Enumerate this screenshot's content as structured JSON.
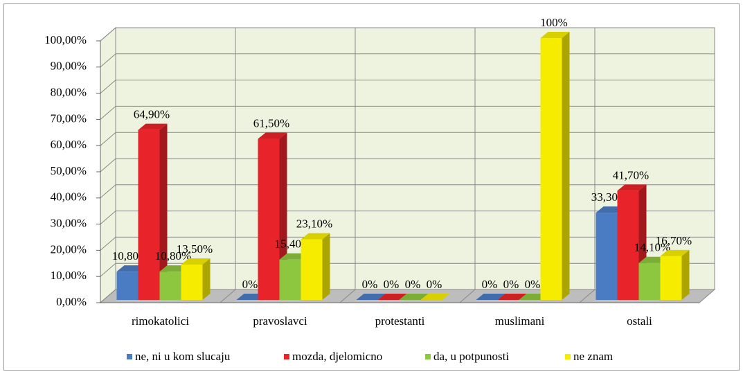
{
  "chart_data": {
    "type": "bar3d",
    "categories": [
      "rimokatolici",
      "pravoslavci",
      "protestanti",
      "muslimani",
      "ostali"
    ],
    "series": [
      {
        "name": "ne, ni u kom slucaju",
        "color": "#4a7cc4",
        "values": [
          10.8,
          0,
          0,
          0,
          33.3
        ],
        "value_labels": [
          "10,80%",
          "0%",
          "0%",
          "0%",
          "33,30%"
        ]
      },
      {
        "name": "mozda, djelomicno",
        "color": "#e8242a",
        "values": [
          64.9,
          61.5,
          0,
          0,
          41.7
        ],
        "value_labels": [
          "64,90%",
          "61,50%",
          "0%",
          "0%",
          "41,70%"
        ]
      },
      {
        "name": "da, u potpunosti",
        "color": "#8dc63f",
        "values": [
          10.8,
          15.4,
          0,
          0,
          14.1
        ],
        "value_labels": [
          "10,80%",
          "15,40%",
          "0%",
          "0%",
          "14,10%"
        ]
      },
      {
        "name": "ne znam",
        "color": "#f5ec00",
        "values": [
          13.5,
          23.1,
          0,
          100,
          16.7
        ],
        "value_labels": [
          "13,50%",
          "23,10%",
          "0%",
          "100%",
          "16,70%"
        ]
      }
    ],
    "ylim": [
      0,
      100
    ],
    "yticks": [
      {
        "value": 0,
        "label": "0,00%"
      },
      {
        "value": 10,
        "label": "10,00%"
      },
      {
        "value": 20,
        "label": "20,00%"
      },
      {
        "value": 30,
        "label": "30,00%"
      },
      {
        "value": 40,
        "label": "40,00%"
      },
      {
        "value": 50,
        "label": "50,00%"
      },
      {
        "value": 60,
        "label": "60,00%"
      },
      {
        "value": 70,
        "label": "70,00%"
      },
      {
        "value": 80,
        "label": "80,00%"
      },
      {
        "value": 90,
        "label": "90,00%"
      },
      {
        "value": 100,
        "label": "100,00%"
      }
    ],
    "grid": true,
    "legend": "bottom"
  }
}
